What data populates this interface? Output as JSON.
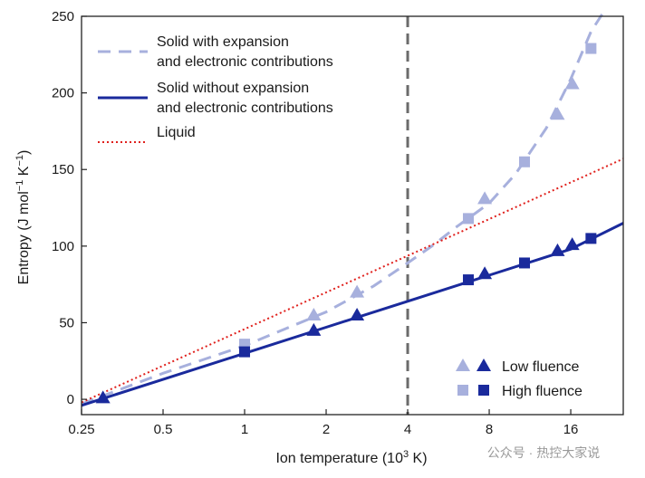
{
  "chart_data": {
    "type": "line",
    "xlabel": "Ion temperature (10",
    "xlabel_sup": "3",
    "xlabel_end": " K)",
    "ylabel": "Entropy (J mol",
    "ylabel_sup1": "−1",
    "ylabel_mid": " K",
    "ylabel_sup2": "−1",
    "ylabel_end": ")",
    "x_scale": "log2",
    "xlim": [
      0.25,
      25
    ],
    "ylim": [
      -10,
      250
    ],
    "x_ticks": [
      {
        "value": 0.25,
        "label": "0.25"
      },
      {
        "value": 0.5,
        "label": "0.5"
      },
      {
        "value": 1,
        "label": "1"
      },
      {
        "value": 2,
        "label": "2"
      },
      {
        "value": 4,
        "label": "4"
      },
      {
        "value": 8,
        "label": "8"
      },
      {
        "value": 16,
        "label": "16"
      }
    ],
    "y_ticks": [
      0,
      50,
      100,
      150,
      200,
      250
    ],
    "vline_x": 4,
    "series": [
      {
        "name": "Solid with expansion and electronic contributions",
        "label_line1": "Solid with expansion",
        "label_line2": "and electronic contributions",
        "color": "#a7b0dd",
        "style": "dashed",
        "x": [
          0.25,
          0.5,
          1,
          2,
          3,
          4,
          5,
          6,
          8,
          10,
          13,
          16,
          19,
          21
        ],
        "y": [
          -3,
          17,
          35,
          57,
          74,
          89,
          101,
          112,
          128,
          147,
          177,
          209,
          240,
          252
        ]
      },
      {
        "name": "Solid without expansion and electronic contributions",
        "label_line1": "Solid without expansion",
        "label_line2": "and electronic contributions",
        "color": "#1a2a9c",
        "style": "solid",
        "x": [
          0.25,
          0.5,
          1,
          2,
          4,
          8,
          16,
          25
        ],
        "y": [
          -4,
          13,
          30,
          47,
          64,
          81,
          98,
          115
        ]
      },
      {
        "name": "Liquid",
        "label_line1": "Liquid",
        "label_line2": "",
        "color": "#e0201c",
        "style": "dotted",
        "x": [
          0.25,
          25
        ],
        "y": [
          -2,
          157
        ]
      }
    ],
    "markers": [
      {
        "name": "Low fluence",
        "color_light": "#a7b0dd",
        "color_dark": "#1a2a9c",
        "shape": "triangle",
        "light_x": [
          1.8,
          2.6,
          7.7,
          14.3,
          16.2
        ],
        "light_y": [
          55,
          70,
          131,
          186,
          206
        ],
        "dark_x": [
          0.3,
          1.8,
          2.6,
          7.7,
          14.3,
          16.2
        ],
        "dark_y": [
          1,
          45,
          55,
          82,
          97,
          101
        ]
      },
      {
        "name": "High fluence",
        "color_light": "#a7b0dd",
        "color_dark": "#1a2a9c",
        "shape": "square",
        "light_x": [
          1.0,
          6.7,
          10.8,
          19
        ],
        "light_y": [
          36,
          118,
          155,
          229
        ],
        "dark_x": [
          1.0,
          6.7,
          10.8,
          19
        ],
        "dark_y": [
          31,
          78,
          89,
          105
        ]
      }
    ]
  },
  "watermark": "公众号 · 热控大家说"
}
